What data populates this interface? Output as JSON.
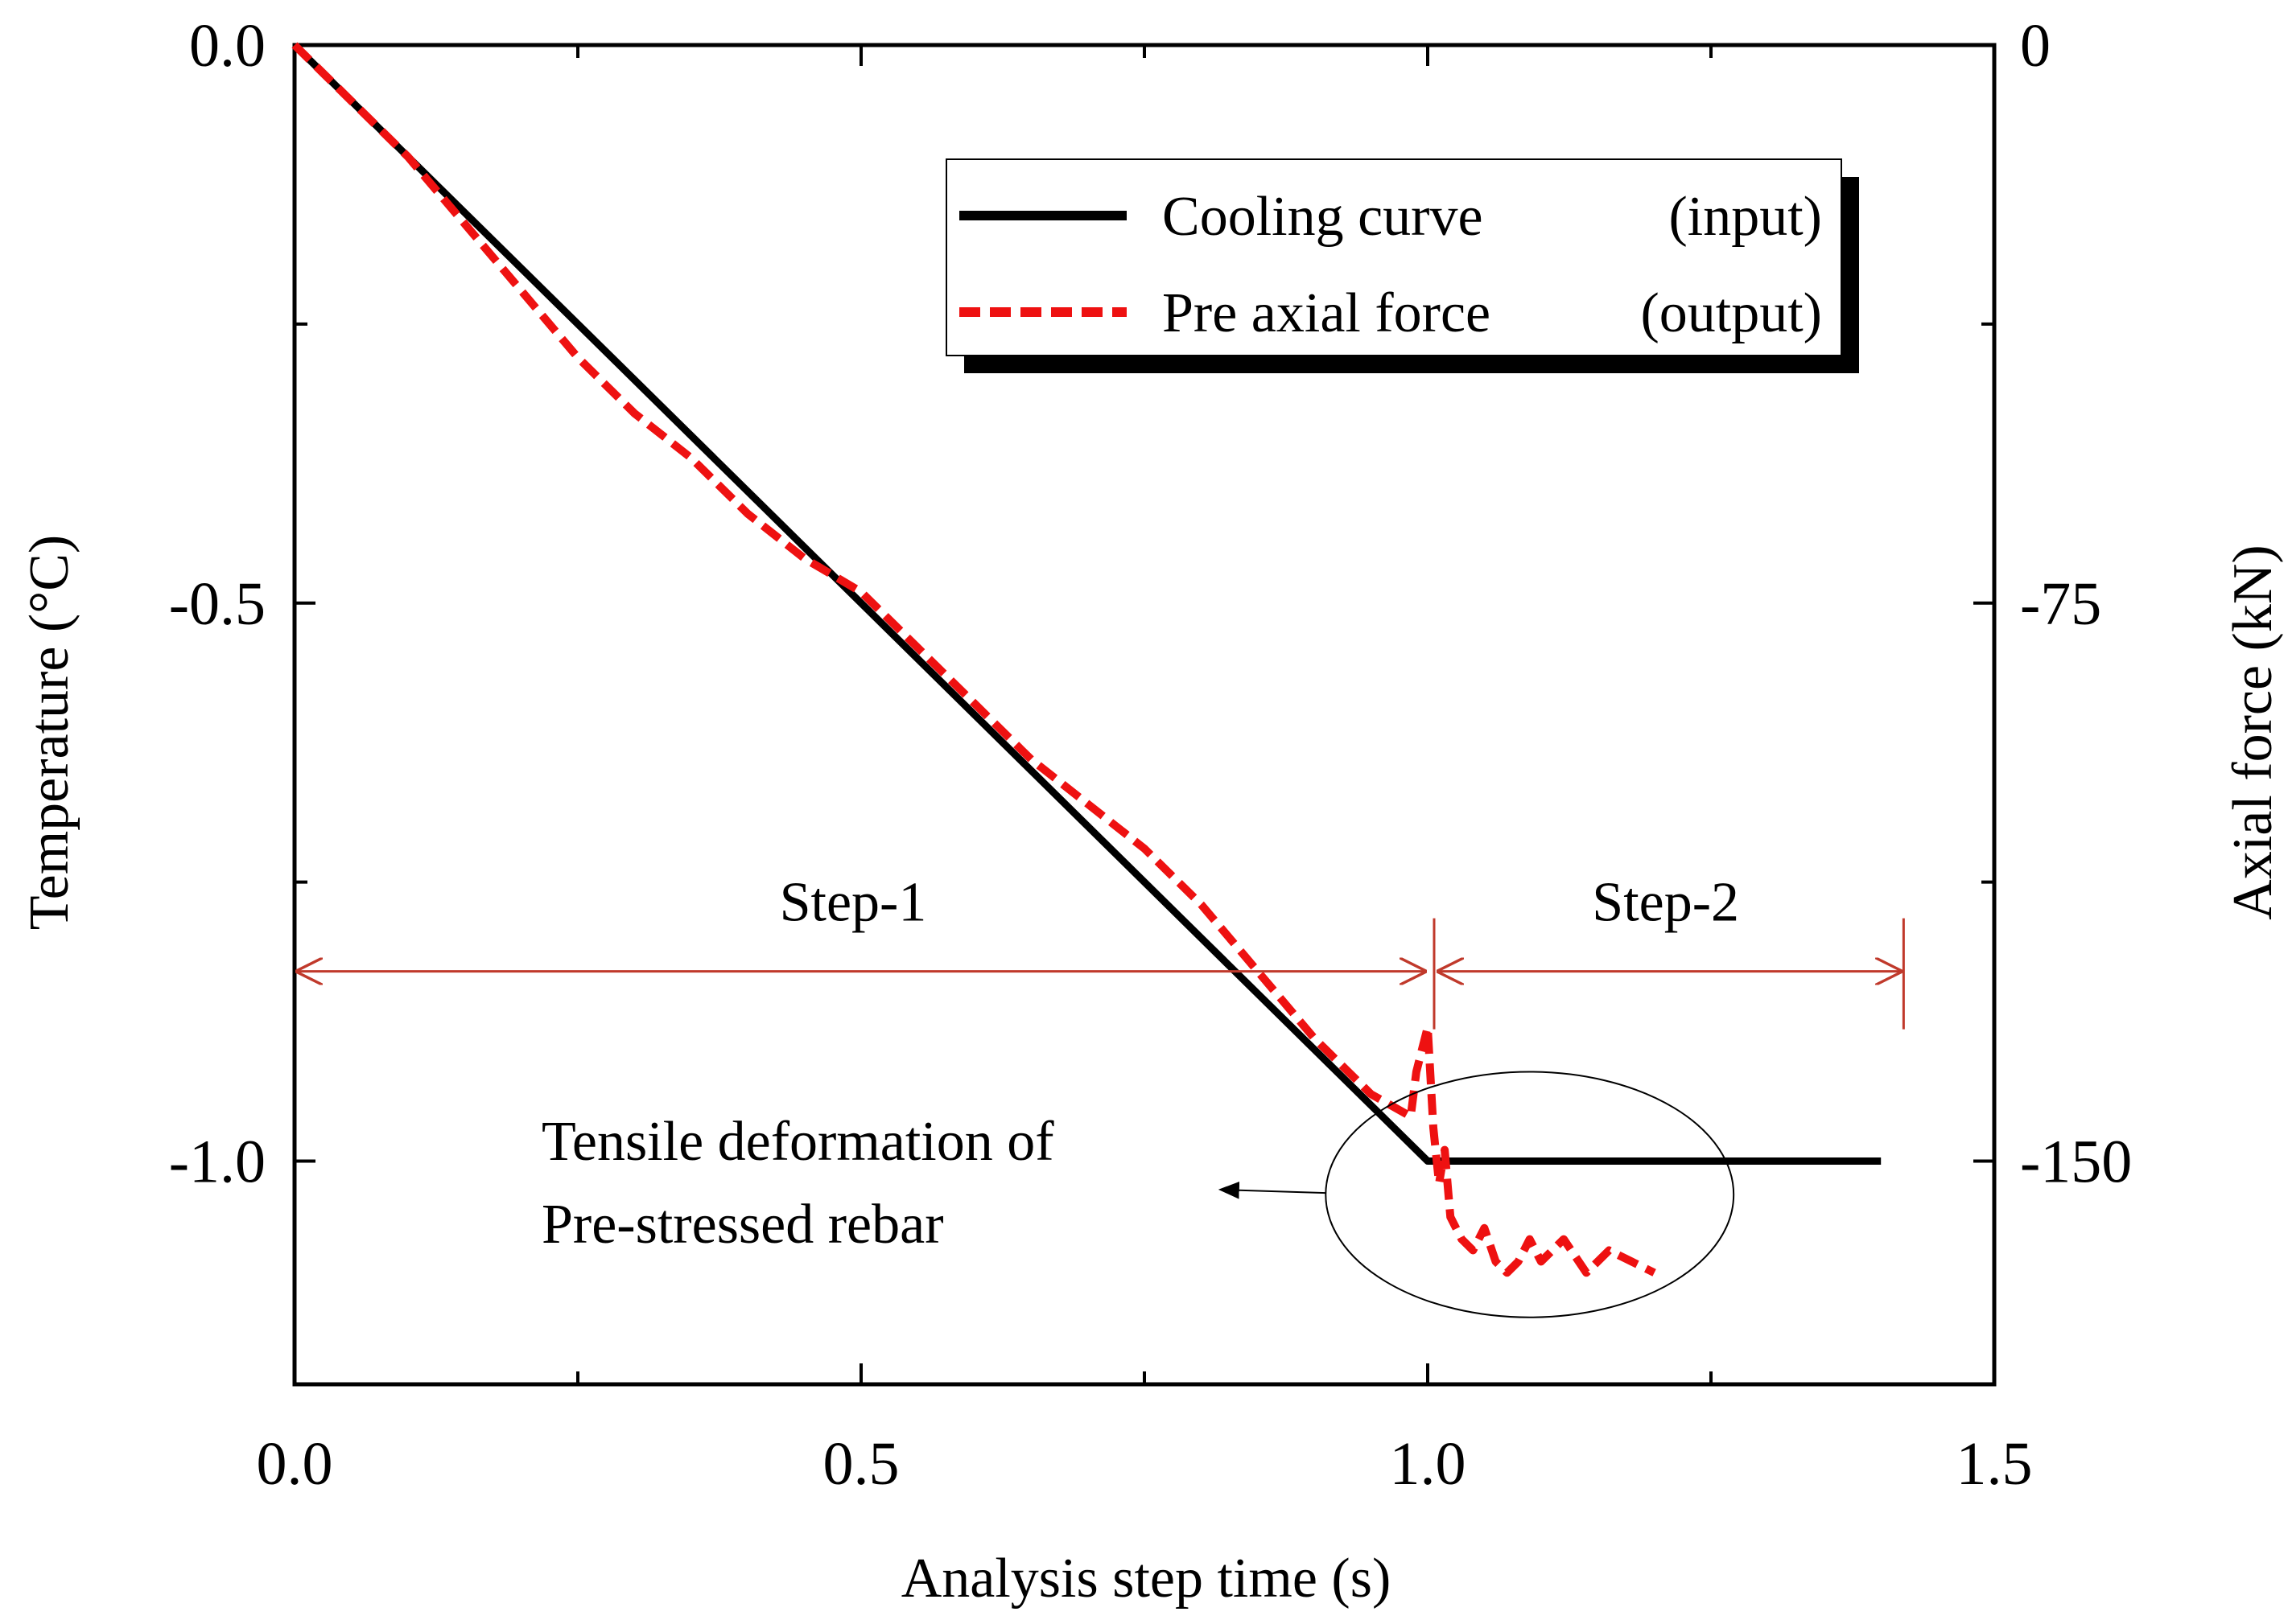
{
  "chart_data": {
    "type": "line",
    "title": "",
    "xlabel": "Analysis step time (s)",
    "ylabel": "Temperature (°C)",
    "y2label": "Axial force (kN)",
    "xlim": [
      0,
      1.5
    ],
    "ylim": [
      -1.2,
      0
    ],
    "y2lim": [
      -180,
      0
    ],
    "x_ticks": [
      {
        "value": 0,
        "label": "0.0"
      },
      {
        "value": 0.5,
        "label": "0.5"
      },
      {
        "value": 1,
        "label": "1.0"
      },
      {
        "value": 1.5,
        "label": "1.5"
      }
    ],
    "x_minor_ticks": [
      0.25,
      0.75,
      1.25
    ],
    "y_ticks": [
      {
        "value": 0,
        "label": "0.0"
      },
      {
        "value": -0.5,
        "label": "-0.5"
      },
      {
        "value": -1.0,
        "label": "-1.0"
      }
    ],
    "y_minor_ticks": [
      -0.25,
      -0.75
    ],
    "y2_ticks": [
      {
        "value": 0,
        "label": "0"
      },
      {
        "value": -75,
        "label": "-75"
      },
      {
        "value": -150,
        "label": "-150"
      }
    ],
    "y2_minor_ticks": [
      -37.5,
      -112.5
    ],
    "grid": false,
    "legend_position": "top-right",
    "series": [
      {
        "name": "Cooling curve",
        "tag": "(input)",
        "axis": "left",
        "color": "#000000",
        "style": "solid",
        "points": [
          [
            0,
            0
          ],
          [
            1.0,
            -1.0
          ],
          [
            1.4,
            -1.0
          ]
        ]
      },
      {
        "name": "Pre axial force",
        "tag": "(output)",
        "axis": "left",
        "color": "#ee1111",
        "style": "dashed",
        "points": [
          [
            0,
            0
          ],
          [
            0.05,
            -0.05
          ],
          [
            0.1,
            -0.1
          ],
          [
            0.15,
            -0.16
          ],
          [
            0.2,
            -0.22
          ],
          [
            0.25,
            -0.28
          ],
          [
            0.3,
            -0.33
          ],
          [
            0.35,
            -0.37
          ],
          [
            0.4,
            -0.42
          ],
          [
            0.45,
            -0.46
          ],
          [
            0.5,
            -0.49
          ],
          [
            0.55,
            -0.54
          ],
          [
            0.6,
            -0.59
          ],
          [
            0.65,
            -0.64
          ],
          [
            0.7,
            -0.68
          ],
          [
            0.75,
            -0.72
          ],
          [
            0.8,
            -0.77
          ],
          [
            0.85,
            -0.83
          ],
          [
            0.9,
            -0.89
          ],
          [
            0.95,
            -0.94
          ],
          [
            0.985,
            -0.96
          ],
          [
            0.99,
            -0.92
          ],
          [
            1.0,
            -0.88
          ],
          [
            1.005,
            -0.97
          ],
          [
            1.01,
            -1.02
          ],
          [
            1.015,
            -0.99
          ],
          [
            1.02,
            -1.05
          ],
          [
            1.03,
            -1.07
          ],
          [
            1.04,
            -1.08
          ],
          [
            1.05,
            -1.06
          ],
          [
            1.06,
            -1.09
          ],
          [
            1.07,
            -1.1
          ],
          [
            1.08,
            -1.09
          ],
          [
            1.09,
            -1.07
          ],
          [
            1.1,
            -1.09
          ],
          [
            1.12,
            -1.07
          ],
          [
            1.14,
            -1.1
          ],
          [
            1.16,
            -1.08
          ],
          [
            1.18,
            -1.09
          ],
          [
            1.2,
            -1.1
          ]
        ]
      }
    ],
    "annotations": {
      "step1": {
        "label": "Step-1",
        "x_from": 0,
        "x_to": 1.0,
        "y": -0.83
      },
      "step2": {
        "label": "Step-2",
        "x_from": 1.0,
        "x_to": 1.42,
        "y": -0.83
      },
      "tensile_note": {
        "line1": "Tensile deformation of",
        "line2": "Pre-stressed rebar",
        "ellipse_center": [
          1.09,
          -1.03
        ],
        "ellipse_radius": [
          0.18,
          0.11
        ]
      }
    },
    "colors": {
      "axis": "#000000",
      "step_arrows": "#c0392b",
      "output": "#ee1111"
    }
  }
}
